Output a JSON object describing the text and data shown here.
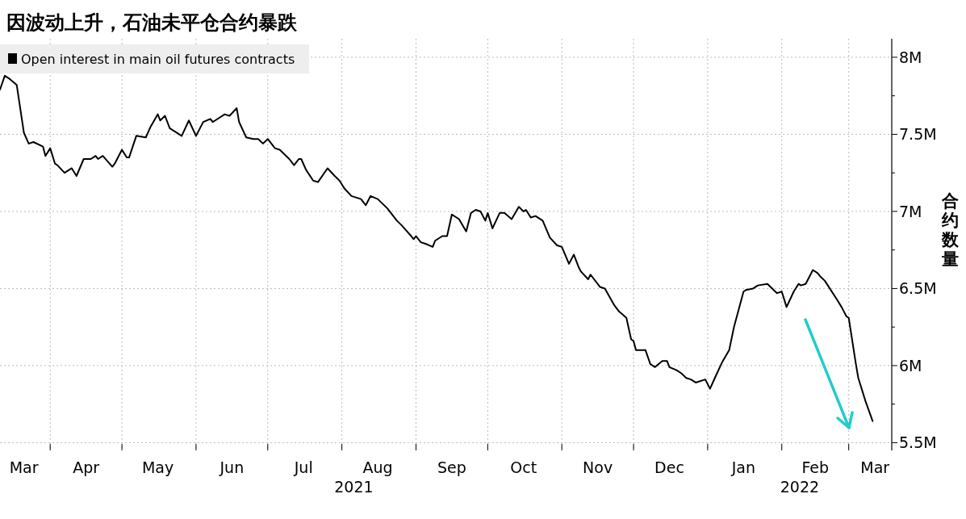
{
  "chart_data": {
    "type": "line",
    "title": "因波动上升，石油未平仓合约暴跌",
    "ylabel": "合约数量",
    "x": [
      "2021-03-11",
      "2021-03-13",
      "2021-03-15",
      "2021-03-18",
      "2021-03-21",
      "2021-03-23",
      "2021-03-25",
      "2021-03-29",
      "2021-03-30",
      "2021-04-01",
      "2021-04-03",
      "2021-04-04",
      "2021-04-07",
      "2021-04-10",
      "2021-04-12",
      "2021-04-15",
      "2021-04-18",
      "2021-04-20",
      "2021-04-21",
      "2021-04-23",
      "2021-04-27",
      "2021-04-28",
      "2021-05-01",
      "2021-05-03",
      "2021-05-04",
      "2021-05-07",
      "2021-05-11",
      "2021-05-13",
      "2021-05-16",
      "2021-05-17",
      "2021-05-19",
      "2021-05-21",
      "2021-05-26",
      "2021-05-29",
      "2021-06-01",
      "2021-06-03",
      "2021-06-04",
      "2021-06-07",
      "2021-06-08",
      "2021-06-09",
      "2021-06-13",
      "2021-06-15",
      "2021-06-18",
      "2021-06-19",
      "2021-06-22",
      "2021-06-25",
      "2021-06-27",
      "2021-06-29",
      "2021-07-01",
      "2021-07-04",
      "2021-07-06",
      "2021-07-10",
      "2021-07-12",
      "2021-07-14",
      "2021-07-15",
      "2021-07-17",
      "2021-07-20",
      "2021-07-22",
      "2021-07-26",
      "2021-07-29",
      "2021-07-31",
      "2021-08-02",
      "2021-08-05",
      "2021-08-09",
      "2021-08-11",
      "2021-08-13",
      "2021-08-16",
      "2021-08-18",
      "2021-08-20",
      "2021-08-24",
      "2021-08-26",
      "2021-08-30",
      "2021-08-31",
      "2021-09-01",
      "2021-09-03",
      "2021-09-05",
      "2021-09-08",
      "2021-09-09",
      "2021-09-12",
      "2021-09-14",
      "2021-09-16",
      "2021-09-19",
      "2021-09-22",
      "2021-09-24",
      "2021-09-26",
      "2021-09-28",
      "2021-09-30",
      "2021-10-01",
      "2021-10-03",
      "2021-10-06",
      "2021-10-08",
      "2021-10-11",
      "2021-10-14",
      "2021-10-16",
      "2021-10-17",
      "2021-10-19",
      "2021-10-21",
      "2021-10-24",
      "2021-10-27",
      "2021-10-30",
      "2021-11-01",
      "2021-11-04",
      "2021-11-06",
      "2021-11-08",
      "2021-11-09",
      "2021-11-12",
      "2021-11-13",
      "2021-11-17",
      "2021-11-19",
      "2021-11-23",
      "2021-11-25",
      "2021-11-28",
      "2021-11-30",
      "2021-12-01",
      "2021-12-02",
      "2021-12-06",
      "2021-12-08",
      "2021-12-10",
      "2021-12-13",
      "2021-12-15",
      "2021-12-16",
      "2021-12-19",
      "2021-12-21",
      "2021-12-23",
      "2021-12-25",
      "2021-12-27",
      "2021-12-31",
      "2022-01-02",
      "2022-01-04",
      "2022-01-07",
      "2022-01-10",
      "2022-01-12",
      "2022-01-16",
      "2022-01-17",
      "2022-01-20",
      "2022-01-22",
      "2022-01-26",
      "2022-01-28",
      "2022-01-30",
      "2022-02-01",
      "2022-02-03",
      "2022-02-06",
      "2022-02-08",
      "2022-02-09",
      "2022-02-11",
      "2022-02-14",
      "2022-02-16",
      "2022-02-17",
      "2022-02-19",
      "2022-02-24",
      "2022-02-26",
      "2022-02-28",
      "2022-03-01",
      "2022-03-04",
      "2022-03-05",
      "2022-03-06",
      "2022-03-08",
      "2022-03-11"
    ],
    "series": [
      {
        "name": "Open interest in main oil futures contracts",
        "color": "#000000",
        "values": [
          7.79,
          7.88,
          7.86,
          7.82,
          7.51,
          7.44,
          7.45,
          7.42,
          7.36,
          7.41,
          7.31,
          7.3,
          7.25,
          7.28,
          7.23,
          7.34,
          7.34,
          7.36,
          7.34,
          7.36,
          7.29,
          7.31,
          7.4,
          7.35,
          7.35,
          7.49,
          7.48,
          7.55,
          7.63,
          7.59,
          7.62,
          7.54,
          7.49,
          7.59,
          7.49,
          7.55,
          7.58,
          7.6,
          7.58,
          7.59,
          7.63,
          7.62,
          7.67,
          7.58,
          7.48,
          7.47,
          7.47,
          7.44,
          7.47,
          7.41,
          7.4,
          7.34,
          7.3,
          7.34,
          7.34,
          7.27,
          7.2,
          7.19,
          7.28,
          7.23,
          7.2,
          7.15,
          7.1,
          7.08,
          7.04,
          7.1,
          7.08,
          7.05,
          7.02,
          6.94,
          6.91,
          6.84,
          6.82,
          6.84,
          6.8,
          6.79,
          6.77,
          6.81,
          6.84,
          6.84,
          6.98,
          6.95,
          6.87,
          6.99,
          7.01,
          7.0,
          6.94,
          6.99,
          6.89,
          6.99,
          6.99,
          6.95,
          7.03,
          7.0,
          7.01,
          6.96,
          6.97,
          6.94,
          6.83,
          6.78,
          6.77,
          6.66,
          6.72,
          6.64,
          6.61,
          6.56,
          6.59,
          6.51,
          6.5,
          6.39,
          6.35,
          6.31,
          6.17,
          6.16,
          6.1,
          6.1,
          6.01,
          5.99,
          6.03,
          6.03,
          5.99,
          5.97,
          5.95,
          5.92,
          5.91,
          5.89,
          5.91,
          5.85,
          5.92,
          6.02,
          6.1,
          6.25,
          6.48,
          6.49,
          6.5,
          6.52,
          6.53,
          6.5,
          6.47,
          6.48,
          6.38,
          6.48,
          6.53,
          6.52,
          6.53,
          6.62,
          6.6,
          6.58,
          6.55,
          6.43,
          6.38,
          6.32,
          6.31,
          6.01,
          5.92,
          5.87,
          5.77,
          5.64
        ]
      }
    ],
    "xlim": [
      "2021-03-11",
      "2022-03-19"
    ],
    "xticks": [
      {
        "value": "2021-03-21",
        "label": "Mar"
      },
      {
        "value": "2021-04-01",
        "label": null
      },
      {
        "value": "2021-04-16",
        "label": "Apr"
      },
      {
        "value": "2021-05-01",
        "label": null
      },
      {
        "value": "2021-05-16",
        "label": "May"
      },
      {
        "value": "2021-06-01",
        "label": null
      },
      {
        "value": "2021-06-16",
        "label": "Jun"
      },
      {
        "value": "2021-07-01",
        "label": null
      },
      {
        "value": "2021-07-16",
        "label": "Jul"
      },
      {
        "value": "2021-08-01",
        "label": null
      },
      {
        "value": "2021-08-16",
        "label": "Aug"
      },
      {
        "value": "2021-09-01",
        "label": null
      },
      {
        "value": "2021-09-16",
        "label": "Sep"
      },
      {
        "value": "2021-10-01",
        "label": null
      },
      {
        "value": "2021-10-16",
        "label": "Oct"
      },
      {
        "value": "2021-11-01",
        "label": null
      },
      {
        "value": "2021-11-16",
        "label": "Nov"
      },
      {
        "value": "2021-12-01",
        "label": null
      },
      {
        "value": "2021-12-16",
        "label": "Dec"
      },
      {
        "value": "2022-01-01",
        "label": null
      },
      {
        "value": "2022-01-16",
        "label": "Jan"
      },
      {
        "value": "2022-02-01",
        "label": null
      },
      {
        "value": "2022-02-15",
        "label": "Feb"
      },
      {
        "value": "2022-03-01",
        "label": null
      },
      {
        "value": "2022-03-12",
        "label": "Mar"
      }
    ],
    "ylim": [
      5.45,
      8.12
    ],
    "yticks": [
      {
        "value": 5.5,
        "label": "5.5M"
      },
      {
        "value": 5.75,
        "label": null
      },
      {
        "value": 6,
        "label": "6M"
      },
      {
        "value": 6.25,
        "label": null
      },
      {
        "value": 6.5,
        "label": "6.5M"
      },
      {
        "value": 6.75,
        "label": null
      },
      {
        "value": 7,
        "label": "7M"
      },
      {
        "value": 7.25,
        "label": null
      },
      {
        "value": 7.5,
        "label": "7.5M"
      },
      {
        "value": 7.75,
        "label": null
      },
      {
        "value": 8,
        "label": "8M"
      }
    ],
    "annotations": [
      "2021",
      "2022"
    ],
    "grid": true,
    "legend": "top left"
  }
}
